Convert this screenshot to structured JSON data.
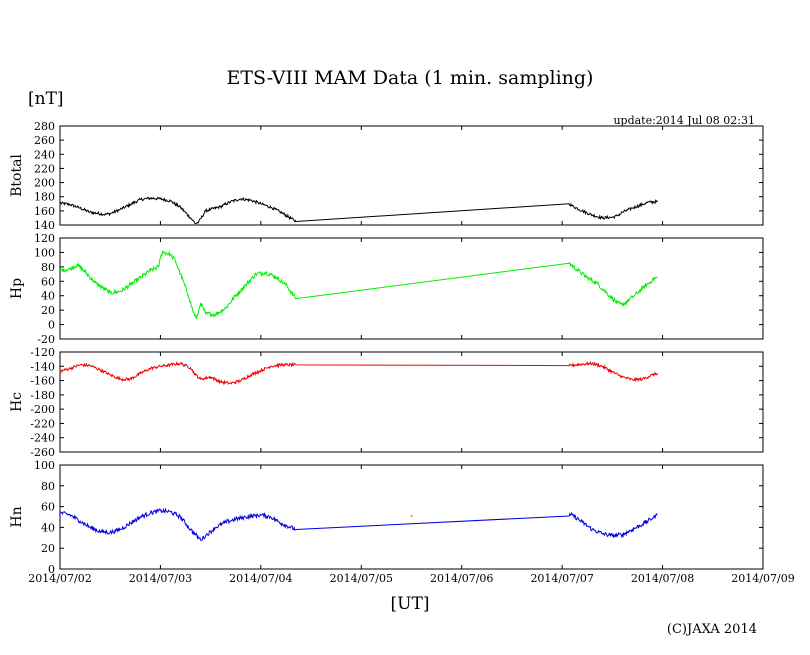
{
  "chart_data": {
    "type": "line",
    "title": "ETS-VIII MAM Data (1 min. sampling)",
    "unit_label": "[nT]",
    "update_text": "update:2014 Jul 08 02:31",
    "xlabel": "[UT]",
    "copyright": "(C)JAXA 2014",
    "x_ticks": [
      "2014/07/02",
      "2014/07/03",
      "2014/07/04",
      "2014/07/05",
      "2014/07/06",
      "2014/07/07",
      "2014/07/08",
      "2014/07/09"
    ],
    "x_range_days": [
      0,
      7
    ],
    "panels": [
      {
        "name": "Btotal",
        "ylabel": "Btotal",
        "color": "#000000",
        "ylim": [
          140,
          280
        ],
        "yticks": [
          140,
          160,
          180,
          200,
          220,
          240,
          260,
          280
        ],
        "noise": 2,
        "points": [
          [
            0,
            171
          ],
          [
            0.1,
            169
          ],
          [
            0.2,
            164
          ],
          [
            0.3,
            158
          ],
          [
            0.45,
            155
          ],
          [
            0.5,
            156
          ],
          [
            0.6,
            162
          ],
          [
            0.7,
            169
          ],
          [
            0.8,
            176
          ],
          [
            0.9,
            178
          ],
          [
            1.0,
            177
          ],
          [
            1.1,
            174
          ],
          [
            1.2,
            165
          ],
          [
            1.3,
            150
          ],
          [
            1.35,
            142
          ],
          [
            1.38,
            144
          ],
          [
            1.45,
            160
          ],
          [
            1.5,
            162
          ],
          [
            1.6,
            166
          ],
          [
            1.7,
            173
          ],
          [
            1.8,
            177
          ],
          [
            1.9,
            175
          ],
          [
            2.0,
            170
          ],
          [
            2.1,
            165
          ],
          [
            2.2,
            158
          ],
          [
            2.35,
            145
          ],
          [
            5.07,
            170
          ],
          [
            5.1,
            167
          ],
          [
            5.2,
            160
          ],
          [
            5.3,
            154
          ],
          [
            5.4,
            150
          ],
          [
            5.5,
            151
          ],
          [
            5.55,
            153
          ],
          [
            5.6,
            158
          ],
          [
            5.7,
            164
          ],
          [
            5.8,
            169
          ],
          [
            5.85,
            172
          ],
          [
            5.95,
            173
          ]
        ]
      },
      {
        "name": "Hp",
        "ylabel": "Hp",
        "color": "#00ee00",
        "ylim": [
          -20,
          120
        ],
        "yticks": [
          -20,
          0,
          20,
          40,
          60,
          80,
          100,
          120
        ],
        "noise": 3,
        "points": [
          [
            0,
            75
          ],
          [
            0.1,
            77
          ],
          [
            0.17,
            83
          ],
          [
            0.25,
            73
          ],
          [
            0.35,
            58
          ],
          [
            0.5,
            44
          ],
          [
            0.6,
            46
          ],
          [
            0.7,
            55
          ],
          [
            0.8,
            65
          ],
          [
            0.9,
            75
          ],
          [
            0.98,
            80
          ],
          [
            1.0,
            92
          ],
          [
            1.02,
            101
          ],
          [
            1.1,
            97
          ],
          [
            1.15,
            88
          ],
          [
            1.2,
            70
          ],
          [
            1.28,
            40
          ],
          [
            1.32,
            20
          ],
          [
            1.36,
            8
          ],
          [
            1.4,
            30
          ],
          [
            1.45,
            15
          ],
          [
            1.55,
            14
          ],
          [
            1.65,
            23
          ],
          [
            1.75,
            40
          ],
          [
            1.85,
            55
          ],
          [
            1.95,
            70
          ],
          [
            2.05,
            72
          ],
          [
            2.15,
            66
          ],
          [
            2.25,
            55
          ],
          [
            2.35,
            36
          ],
          [
            5.07,
            85
          ],
          [
            5.15,
            76
          ],
          [
            5.25,
            65
          ],
          [
            5.35,
            57
          ],
          [
            5.45,
            43
          ],
          [
            5.55,
            30
          ],
          [
            5.6,
            27
          ],
          [
            5.7,
            38
          ],
          [
            5.8,
            50
          ],
          [
            5.9,
            62
          ],
          [
            5.95,
            66
          ]
        ]
      },
      {
        "name": "Hc",
        "ylabel": "Hc",
        "color": "#ee0000",
        "ylim": [
          -260,
          -120
        ],
        "yticks": [
          -260,
          -240,
          -220,
          -200,
          -180,
          -160,
          -140,
          -120
        ],
        "noise": 2,
        "points": [
          [
            0,
            -147
          ],
          [
            0.1,
            -143
          ],
          [
            0.2,
            -138
          ],
          [
            0.3,
            -139
          ],
          [
            0.4,
            -145
          ],
          [
            0.5,
            -152
          ],
          [
            0.6,
            -158
          ],
          [
            0.7,
            -158
          ],
          [
            0.8,
            -150
          ],
          [
            0.9,
            -143
          ],
          [
            1.0,
            -140
          ],
          [
            1.1,
            -138
          ],
          [
            1.2,
            -136
          ],
          [
            1.3,
            -142
          ],
          [
            1.35,
            -152
          ],
          [
            1.4,
            -158
          ],
          [
            1.5,
            -155
          ],
          [
            1.6,
            -162
          ],
          [
            1.7,
            -164
          ],
          [
            1.8,
            -160
          ],
          [
            1.9,
            -152
          ],
          [
            2.0,
            -146
          ],
          [
            2.1,
            -140
          ],
          [
            2.2,
            -138
          ],
          [
            2.35,
            -138
          ],
          [
            5.07,
            -139
          ],
          [
            5.2,
            -137
          ],
          [
            5.3,
            -136
          ],
          [
            5.4,
            -140
          ],
          [
            5.5,
            -148
          ],
          [
            5.6,
            -155
          ],
          [
            5.7,
            -159
          ],
          [
            5.8,
            -158
          ],
          [
            5.9,
            -152
          ],
          [
            5.95,
            -150
          ]
        ]
      },
      {
        "name": "Hn",
        "ylabel": "Hn",
        "color": "#0000dd",
        "ylim": [
          0,
          100
        ],
        "yticks": [
          0,
          20,
          40,
          60,
          80,
          100
        ],
        "noise": 2,
        "points": [
          [
            0,
            54
          ],
          [
            0.1,
            52
          ],
          [
            0.2,
            46
          ],
          [
            0.3,
            40
          ],
          [
            0.4,
            36
          ],
          [
            0.5,
            35
          ],
          [
            0.6,
            38
          ],
          [
            0.7,
            44
          ],
          [
            0.8,
            50
          ],
          [
            0.9,
            54
          ],
          [
            1.0,
            56
          ],
          [
            1.1,
            55
          ],
          [
            1.2,
            50
          ],
          [
            1.3,
            38
          ],
          [
            1.4,
            28
          ],
          [
            1.45,
            32
          ],
          [
            1.55,
            40
          ],
          [
            1.65,
            45
          ],
          [
            1.75,
            48
          ],
          [
            1.85,
            50
          ],
          [
            2.0,
            52
          ],
          [
            2.1,
            50
          ],
          [
            2.2,
            44
          ],
          [
            2.35,
            38
          ],
          [
            5.07,
            51
          ],
          [
            5.1,
            52
          ],
          [
            5.2,
            45
          ],
          [
            5.3,
            38
          ],
          [
            5.4,
            34
          ],
          [
            5.5,
            32
          ],
          [
            5.6,
            33
          ],
          [
            5.7,
            38
          ],
          [
            5.8,
            43
          ],
          [
            5.9,
            49
          ],
          [
            5.95,
            52
          ]
        ],
        "stray_point": [
          3.5,
          51
        ]
      }
    ]
  }
}
